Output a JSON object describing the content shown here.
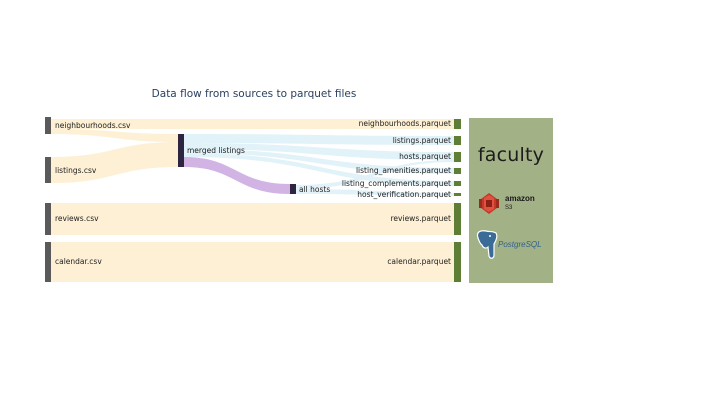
{
  "title": "Data flow from sources to parquet files",
  "colors": {
    "source_node": "#5a5a5a",
    "intermediate_node": "#2e2540",
    "target_node": "#5e7d35",
    "link_source": "#fdefd2",
    "link_merged": "#dff1f8",
    "link_hosts": "#cfb0e3",
    "panel_bg": "#a3b186"
  },
  "nodes": {
    "neighbourhoods_csv": "neighbourhoods.csv",
    "listings_csv": "listings.csv",
    "reviews_csv": "reviews.csv",
    "calendar_csv": "calendar.csv",
    "merged_listings": "merged listings",
    "all_hosts": "all hosts",
    "neighbourhoods_parquet": "neighbourhoods.parquet",
    "listings_parquet": "listings.parquet",
    "hosts_parquet": "hosts.parquet",
    "listing_amenities_parquet": "listing_amenities.parquet",
    "listing_complements_parquet": "listing_complements.parquet",
    "host_verification_parquet": "host_verification.parquet",
    "reviews_parquet": "reviews.parquet",
    "calendar_parquet": "calendar.parquet"
  },
  "logos": {
    "faculty": "faculty",
    "amazon": "amazon",
    "s3": "S3",
    "postgresql": "PostgreSQL",
    "icons": [
      "amazon-s3-icon",
      "postgresql-elephant-icon"
    ]
  }
}
